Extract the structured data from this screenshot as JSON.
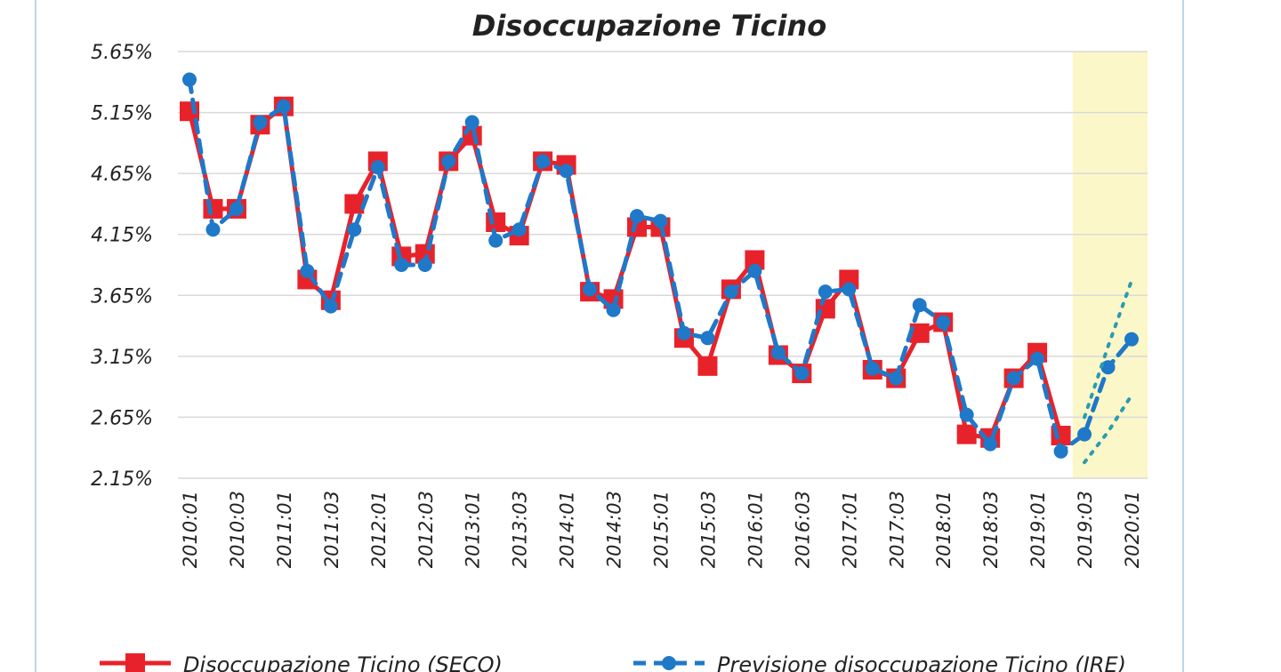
{
  "chart_data": {
    "type": "line",
    "title": "Disoccupazione Ticino",
    "categories": [
      "2010:01",
      null,
      "2010:03",
      null,
      "2011:01",
      null,
      "2011:03",
      null,
      "2012:01",
      null,
      "2012:03",
      null,
      "2013:01",
      null,
      "2013:03",
      null,
      "2014:01",
      null,
      "2014:03",
      null,
      "2015:01",
      null,
      "2015:03",
      null,
      "2016:01",
      null,
      "2016:03",
      null,
      "2017:01",
      null,
      "2017:03",
      null,
      "2018:01",
      null,
      "2018:03",
      null,
      "2019:01",
      null,
      "2019:03",
      null,
      "2020:01"
    ],
    "ylim": [
      2.15,
      5.65
    ],
    "yticks": [
      {
        "value": 2.15,
        "label": "2.15%"
      },
      {
        "value": 2.65,
        "label": "2.65%"
      },
      {
        "value": 3.15,
        "label": "3.15%"
      },
      {
        "value": 3.65,
        "label": "3.65%"
      },
      {
        "value": 4.15,
        "label": "4.15%"
      },
      {
        "value": 4.65,
        "label": "4.65%"
      },
      {
        "value": 5.15,
        "label": "5.15%"
      },
      {
        "value": 5.65,
        "label": "5.65%"
      }
    ],
    "grid": true,
    "series": [
      {
        "name": "Disoccupazione Ticino (SECO)",
        "color": "#e8222a",
        "marker": "square",
        "dash": false,
        "values": [
          5.16,
          4.36,
          4.36,
          5.05,
          5.2,
          3.78,
          3.61,
          4.4,
          4.75,
          3.97,
          3.99,
          4.75,
          4.96,
          4.25,
          4.14,
          4.75,
          4.72,
          3.68,
          3.62,
          4.21,
          4.21,
          3.3,
          3.07,
          3.7,
          3.94,
          3.16,
          3.01,
          3.54,
          3.78,
          3.04,
          2.97,
          3.34,
          3.43,
          2.51,
          2.48,
          2.97,
          3.18,
          2.5,
          null,
          null,
          null
        ]
      },
      {
        "name": "Previsione disoccupazione Ticino (IRE)",
        "color": "#1f78c8",
        "marker": "circle",
        "dash": true,
        "values": [
          5.42,
          4.19,
          4.36,
          5.07,
          5.2,
          3.85,
          3.56,
          4.19,
          4.7,
          3.9,
          3.9,
          4.75,
          5.07,
          4.1,
          4.19,
          4.75,
          4.67,
          3.7,
          3.53,
          4.3,
          4.26,
          3.34,
          3.3,
          3.68,
          3.85,
          3.18,
          3.01,
          3.68,
          3.7,
          3.05,
          2.97,
          3.57,
          3.43,
          2.67,
          2.43,
          2.97,
          3.13,
          2.37,
          2.51,
          3.06,
          3.29
        ]
      },
      {
        "color": "#2a9bb0",
        "marker": "none",
        "dash": "dot",
        "values": [
          null,
          null,
          null,
          null,
          null,
          null,
          null,
          null,
          null,
          null,
          null,
          null,
          null,
          null,
          null,
          null,
          null,
          null,
          null,
          null,
          null,
          null,
          null,
          null,
          null,
          null,
          null,
          null,
          null,
          null,
          null,
          null,
          null,
          null,
          null,
          null,
          null,
          null,
          2.65,
          3.23,
          3.77
        ]
      },
      {
        "color": "#2a9bb0",
        "marker": "none",
        "dash": "dot",
        "values": [
          null,
          null,
          null,
          null,
          null,
          null,
          null,
          null,
          null,
          null,
          null,
          null,
          null,
          null,
          null,
          null,
          null,
          null,
          null,
          null,
          null,
          null,
          null,
          null,
          null,
          null,
          null,
          null,
          null,
          null,
          null,
          null,
          null,
          null,
          null,
          null,
          null,
          null,
          2.28,
          2.53,
          2.83
        ]
      }
    ]
  }
}
